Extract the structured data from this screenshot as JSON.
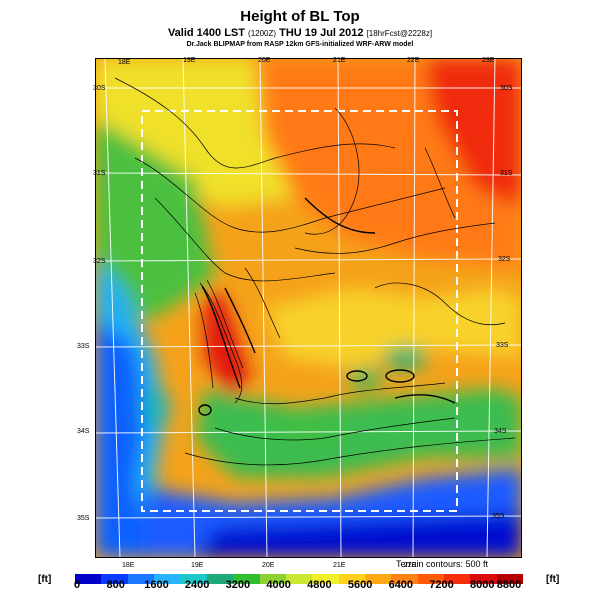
{
  "header": {
    "title": "Height of BL Top",
    "valid_line": "Valid 1400 LST",
    "valid_small": "(1200Z)",
    "valid_date": "THU 19 Jul 2012",
    "valid_fcst": "[18hrFcst@2228z]",
    "credit": "Dr.Jack BLIPMAP from RASP 12km GFS-initialized WRF-ARW model"
  },
  "map": {
    "lon_labels_top": [
      "18E",
      "19E",
      "20E",
      "21E",
      "22E",
      "23E"
    ],
    "lon_labels_bottom": [
      "18E",
      "19E",
      "20E",
      "21E",
      "22E"
    ],
    "lat_labels_left": [
      "30S",
      "31S",
      "32S",
      "33S",
      "34S",
      "35S"
    ],
    "lat_labels_right": [
      "30S",
      "31S",
      "32S",
      "33S",
      "34S",
      "35S"
    ],
    "terrain_note": "Terrain contours: 500 ft"
  },
  "colorbar": {
    "unit_left": "[ft]",
    "unit_right": "[ft]",
    "ticks": [
      "0",
      "800",
      "1600",
      "2400",
      "3200",
      "4000",
      "4800",
      "5600",
      "6400",
      "7200",
      "8000",
      "8800"
    ],
    "colors": [
      "#0000c8",
      "#0a3cff",
      "#1e78ff",
      "#28b4ff",
      "#1ec8c8",
      "#1eaa78",
      "#32be32",
      "#8cd232",
      "#c8e632",
      "#f0f028",
      "#ffd21e",
      "#ffaa14",
      "#ff8214",
      "#ff5a0a",
      "#f52d0a",
      "#dc0a0a",
      "#b40000"
    ]
  }
}
